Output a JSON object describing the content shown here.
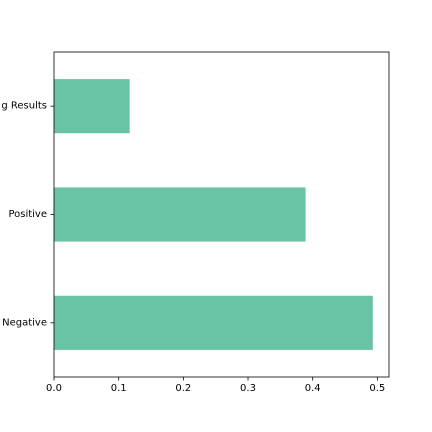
{
  "chart_data": {
    "type": "bar",
    "orientation": "horizontal",
    "categories": [
      "Negative",
      "Positive",
      "g Results"
    ],
    "values": [
      0.493,
      0.389,
      0.117
    ],
    "xlim": [
      0,
      0.518
    ],
    "xticks": [
      "0.0",
      "0.1",
      "0.2",
      "0.3",
      "0.4",
      "0.5"
    ],
    "title": "",
    "xlabel": "",
    "ylabel": "",
    "grid": false,
    "bar_color": "#6bc3a6"
  }
}
